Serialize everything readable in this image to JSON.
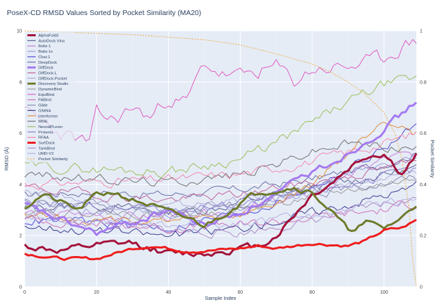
{
  "chart_data": {
    "type": "line",
    "title": "PoseX-CD RMSD Values Sorted by Pocket Similarity (MA20)",
    "xlabel": "Sample Index",
    "ylabel": "RMSD (Å)",
    "y2label": "Pocket Similarity",
    "xlim": [
      0,
      109
    ],
    "ylim": [
      0,
      10
    ],
    "y2lim": [
      0,
      1
    ],
    "xticks": [
      0,
      20,
      40,
      60,
      80,
      100
    ],
    "yticks": [
      0,
      2,
      4,
      6,
      8,
      10
    ],
    "y2ticks": [
      0,
      0.2,
      0.4,
      0.6,
      0.8,
      1
    ],
    "xtick_labels": [
      "0",
      "20",
      "40",
      "60",
      "80",
      "100"
    ],
    "ytick_labels": [
      "0",
      "2",
      "4",
      "6",
      "8",
      "10"
    ],
    "y2tick_labels": [
      "0",
      "0.2",
      "0.4",
      "0.6",
      "0.8",
      "1"
    ],
    "grid": true,
    "legend_position": "top-left",
    "series": [
      {
        "name": "AlphaFold3",
        "color": "#a3123a",
        "width": 3,
        "dash": "",
        "seed": 11,
        "noise": 0.12,
        "x": [
          0,
          10,
          20,
          30,
          40,
          50,
          55,
          60,
          65,
          70,
          80,
          85,
          90,
          95,
          100,
          105,
          109
        ],
        "y": [
          1.6,
          1.4,
          1.6,
          1.7,
          1.3,
          1.3,
          1.4,
          1.5,
          1.6,
          2.0,
          3.6,
          4.0,
          4.6,
          5.1,
          5.2,
          4.4,
          5.1
        ]
      },
      {
        "name": "AutoDock Vina",
        "color": "#5b5f8f",
        "width": 1,
        "dash": "",
        "seed": 12,
        "noise": 0.16,
        "x": [
          0,
          20,
          40,
          50,
          60,
          70,
          80,
          90,
          100,
          109
        ],
        "y": [
          3.1,
          3.2,
          2.9,
          3.0,
          3.3,
          3.6,
          3.9,
          4.1,
          4.4,
          4.6
        ]
      },
      {
        "name": "Boltz-1",
        "color": "#c97ad8",
        "width": 1,
        "dash": "",
        "seed": 13,
        "noise": 0.15,
        "x": [
          0,
          20,
          40,
          60,
          70,
          80,
          90,
          100,
          109
        ],
        "y": [
          2.9,
          2.8,
          2.7,
          3.0,
          3.3,
          3.6,
          4.3,
          5.0,
          5.2
        ]
      },
      {
        "name": "Boltz-1x",
        "color": "#9b9bd8",
        "width": 1,
        "dash": "",
        "seed": 14,
        "noise": 0.15,
        "x": [
          0,
          20,
          40,
          60,
          70,
          80,
          90,
          100,
          109
        ],
        "y": [
          3.1,
          3.0,
          2.8,
          3.1,
          3.4,
          3.8,
          4.3,
          4.8,
          5.0
        ]
      },
      {
        "name": "Chai-1",
        "color": "#4e4ad8",
        "width": 1,
        "dash": "",
        "seed": 15,
        "noise": 0.16,
        "x": [
          0,
          20,
          40,
          60,
          70,
          80,
          90,
          100,
          109
        ],
        "y": [
          2.6,
          2.5,
          2.3,
          2.9,
          3.3,
          3.9,
          4.6,
          5.4,
          6.3
        ]
      },
      {
        "name": "DeepDock",
        "color": "#6c6fa8",
        "width": 1,
        "dash": "",
        "seed": 16,
        "noise": 0.14,
        "x": [
          0,
          20,
          40,
          60,
          80,
          100,
          109
        ],
        "y": [
          3.6,
          3.7,
          3.6,
          3.8,
          4.2,
          4.8,
          5.2
        ]
      },
      {
        "name": "DiffDock",
        "color": "#a57af0",
        "width": 3,
        "dash": "",
        "seed": 17,
        "noise": 0.12,
        "x": [
          0,
          10,
          20,
          30,
          40,
          50,
          60,
          70,
          80,
          90,
          100,
          109
        ],
        "y": [
          3.2,
          2.6,
          2.1,
          2.5,
          3.0,
          2.4,
          2.9,
          3.6,
          4.5,
          5.2,
          6.2,
          7.2
        ]
      },
      {
        "name": "DiffDock-L",
        "color": "#c0609a",
        "width": 1,
        "dash": "",
        "seed": 18,
        "noise": 0.15,
        "x": [
          0,
          20,
          40,
          60,
          80,
          100,
          109
        ],
        "y": [
          3.9,
          3.6,
          3.4,
          3.6,
          4.1,
          4.6,
          4.9
        ]
      },
      {
        "name": "DiffDock-Pocket",
        "color": "#b0aad8",
        "width": 1,
        "dash": "",
        "seed": 19,
        "noise": 0.15,
        "x": [
          0,
          20,
          40,
          60,
          80,
          100,
          109
        ],
        "y": [
          3.8,
          3.3,
          3.1,
          3.4,
          3.8,
          4.2,
          4.4
        ]
      },
      {
        "name": "Discovery Studio",
        "color": "#6e7a2a",
        "width": 3,
        "dash": "",
        "seed": 20,
        "noise": 0.1,
        "x": [
          0,
          5,
          10,
          15,
          20,
          25,
          30,
          35,
          40,
          45,
          50,
          55,
          60,
          65,
          70,
          75,
          80,
          85,
          90,
          95,
          100,
          105,
          109
        ],
        "y": [
          3.1,
          3.6,
          3.3,
          3.0,
          3.6,
          3.7,
          3.4,
          3.2,
          2.9,
          2.7,
          2.4,
          2.8,
          3.3,
          3.7,
          3.8,
          3.9,
          3.7,
          3.0,
          2.2,
          2.5,
          2.3,
          2.7,
          3.2
        ]
      },
      {
        "name": "DynamicBind",
        "color": "#9a9a9a",
        "width": 1,
        "dash": "",
        "seed": 21,
        "noise": 0.14,
        "x": [
          0,
          20,
          40,
          60,
          80,
          100,
          109
        ],
        "y": [
          3.0,
          2.9,
          2.8,
          3.0,
          3.5,
          4.0,
          4.2
        ]
      },
      {
        "name": "EquiBind",
        "color": "#e05cc0",
        "width": 1,
        "dash": "",
        "seed": 22,
        "noise": 0.25,
        "x": [
          0,
          5,
          10,
          18,
          20,
          25,
          30,
          35,
          40,
          45,
          50,
          55,
          60,
          65,
          70,
          75,
          80,
          90,
          100,
          105,
          109
        ],
        "y": [
          6.8,
          6.4,
          6.0,
          5.6,
          6.7,
          6.5,
          7.0,
          6.6,
          7.4,
          7.2,
          8.7,
          8.3,
          8.2,
          8.4,
          8.6,
          8.0,
          8.5,
          8.6,
          8.9,
          9.4,
          9.6
        ]
      },
      {
        "name": "FABind",
        "color": "#d070b8",
        "width": 1,
        "dash": "",
        "seed": 23,
        "noise": 0.16,
        "x": [
          0,
          20,
          40,
          60,
          80,
          100,
          109
        ],
        "y": [
          2.6,
          2.5,
          2.3,
          2.4,
          2.7,
          3.0,
          3.3
        ]
      },
      {
        "name": "Glide",
        "color": "#8a8ab0",
        "width": 1,
        "dash": "",
        "seed": 24,
        "noise": 0.15,
        "x": [
          0,
          20,
          40,
          60,
          80,
          100,
          109
        ],
        "y": [
          3.4,
          3.2,
          3.0,
          3.2,
          3.6,
          4.1,
          4.3
        ]
      },
      {
        "name": "GNINA",
        "color": "#3c3a90",
        "width": 1,
        "dash": "",
        "seed": 25,
        "noise": 0.16,
        "x": [
          0,
          20,
          40,
          60,
          80,
          100,
          109
        ],
        "y": [
          2.4,
          2.2,
          2.0,
          2.3,
          2.9,
          3.6,
          3.9
        ]
      },
      {
        "name": "Interformer",
        "color": "#e08c3a",
        "width": 1,
        "dash": "",
        "seed": 26,
        "noise": 0.15,
        "x": [
          0,
          20,
          40,
          60,
          70,
          80,
          90,
          100,
          109
        ],
        "y": [
          2.9,
          2.6,
          2.5,
          2.8,
          3.2,
          4.0,
          5.2,
          6.6,
          6.0
        ]
      },
      {
        "name": "MOE",
        "color": "#707070",
        "width": 1,
        "dash": "",
        "seed": 27,
        "noise": 0.16,
        "x": [
          0,
          20,
          40,
          60,
          70,
          80,
          90,
          100,
          109
        ],
        "y": [
          4.4,
          4.2,
          4.1,
          4.4,
          4.8,
          5.3,
          5.6,
          5.5,
          5.4
        ]
      },
      {
        "name": "NeuralPLexer",
        "color": "#9bbf5a",
        "width": 1,
        "dash": "",
        "seed": 28,
        "noise": 0.18,
        "x": [
          0,
          20,
          40,
          60,
          70,
          80,
          90,
          100,
          109
        ],
        "y": [
          4.7,
          4.6,
          4.5,
          5.0,
          5.6,
          6.4,
          7.2,
          7.9,
          8.1
        ]
      },
      {
        "name": "Protenix",
        "color": "#8a80d0",
        "width": 1,
        "dash": "",
        "seed": 29,
        "noise": 0.15,
        "x": [
          0,
          20,
          40,
          60,
          80,
          100,
          109
        ],
        "y": [
          3.3,
          3.1,
          3.0,
          3.2,
          3.7,
          4.3,
          4.5
        ]
      },
      {
        "name": "RFAA",
        "color": "#f28ab0",
        "width": 1,
        "dash": "",
        "seed": 30,
        "noise": 0.16,
        "x": [
          0,
          20,
          40,
          60,
          80,
          100,
          109
        ],
        "y": [
          4.0,
          4.1,
          4.2,
          4.4,
          4.9,
          5.6,
          6.0
        ]
      },
      {
        "name": "SurfDock",
        "color": "#ee1c1c",
        "width": 3,
        "dash": "",
        "seed": 31,
        "noise": 0.05,
        "x": [
          0,
          10,
          20,
          25,
          30,
          35,
          40,
          45,
          50,
          60,
          65,
          70,
          75,
          80,
          90,
          95,
          100,
          105,
          109
        ],
        "y": [
          1.3,
          1.1,
          1.1,
          1.3,
          1.5,
          1.6,
          1.5,
          1.4,
          1.4,
          1.5,
          1.6,
          1.5,
          1.6,
          1.7,
          1.6,
          1.8,
          2.2,
          2.3,
          2.6
        ]
      },
      {
        "name": "TankBind",
        "color": "#b08ac8",
        "width": 1,
        "dash": "",
        "seed": 32,
        "noise": 0.15,
        "x": [
          0,
          20,
          40,
          60,
          80,
          100,
          109
        ],
        "y": [
          2.7,
          2.5,
          2.2,
          2.1,
          2.6,
          3.2,
          3.4
        ]
      },
      {
        "name": "UMD-V2",
        "color": "#b5b0e0",
        "width": 1,
        "dash": "",
        "seed": 33,
        "noise": 0.15,
        "x": [
          0,
          20,
          40,
          60,
          80,
          100,
          109
        ],
        "y": [
          2.8,
          2.6,
          2.4,
          2.5,
          2.8,
          3.3,
          3.5
        ]
      },
      {
        "name": "Pocket Similarity",
        "color": "#f2a93b",
        "width": 1,
        "dash": "2,2",
        "axis": "right",
        "seed": 0,
        "noise": 0,
        "x": [
          0,
          10,
          20,
          30,
          40,
          50,
          60,
          70,
          75,
          80,
          85,
          90,
          95,
          100,
          103,
          105,
          107,
          108,
          109
        ],
        "y": [
          1.0,
          0.995,
          0.99,
          0.985,
          0.975,
          0.965,
          0.945,
          0.91,
          0.89,
          0.87,
          0.84,
          0.8,
          0.75,
          0.68,
          0.6,
          0.5,
          0.3,
          0.1,
          0.0
        ]
      }
    ]
  }
}
